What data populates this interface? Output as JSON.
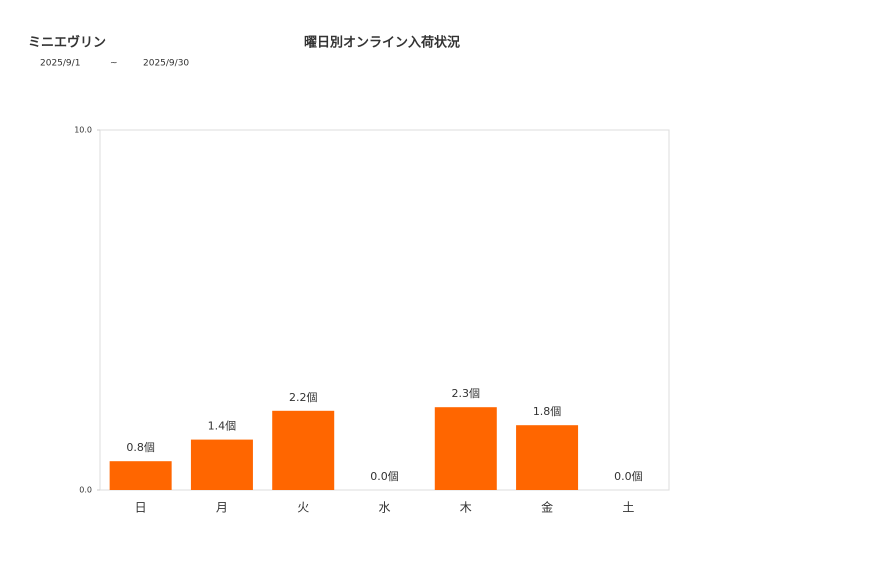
{
  "header": {
    "shop": "ミニエヴリン",
    "date_from": "2025/9/1",
    "date_sep": "~",
    "date_to": "2025/9/30"
  },
  "chart_data": {
    "type": "bar",
    "title": "曜日別オンライン入荷状況",
    "categories": [
      "日",
      "月",
      "火",
      "水",
      "木",
      "金",
      "土"
    ],
    "values": [
      0.8,
      1.4,
      2.2,
      0.0,
      2.3,
      1.8,
      0.0
    ],
    "value_labels": [
      "0.8個",
      "1.4個",
      "2.2個",
      "0.0個",
      "2.3個",
      "1.8個",
      "0.0個"
    ],
    "color": "#ff6600",
    "ylim": [
      0,
      10
    ],
    "yticks": [
      {
        "value": 0,
        "label": "0.0"
      },
      {
        "value": 10,
        "label": "10.0"
      }
    ]
  }
}
